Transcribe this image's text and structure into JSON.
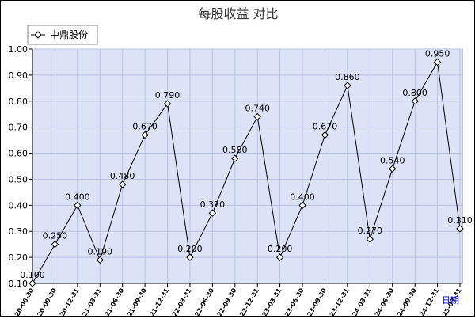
{
  "chart_data": {
    "type": "line",
    "title": "每股收益  对比",
    "xlabel": "日期",
    "ylabel": "",
    "ylim": [
      0.1,
      1.0
    ],
    "yticks": [
      "0.10",
      "0.20",
      "0.30",
      "0.40",
      "0.50",
      "0.60",
      "0.70",
      "0.80",
      "0.90",
      "1.00"
    ],
    "grid": true,
    "legend_position": "top-left",
    "colors": {
      "plot_bg": "#dde3f7",
      "grid": "#b8c2e6",
      "line": "#000000",
      "link": "#0000cc"
    },
    "categories": [
      "2020-06-30",
      "2020-09-30",
      "2020-12-31",
      "2021-03-31",
      "2021-06-30",
      "2021-09-30",
      "2021-12-31",
      "2022-03-31",
      "2022-06-30",
      "2022-09-30",
      "2022-12-31",
      "2023-03-31",
      "2023-06-30",
      "2023-09-30",
      "2023-12-31",
      "2024-03-31",
      "2024-06-30",
      "2024-09-30",
      "2024-12-31",
      "2025-03-31"
    ],
    "series": [
      {
        "name": "中鼎股份",
        "values": [
          0.1,
          0.25,
          0.4,
          0.19,
          0.48,
          0.67,
          0.79,
          0.2,
          0.37,
          0.58,
          0.74,
          0.2,
          0.4,
          0.67,
          0.86,
          0.27,
          0.54,
          0.8,
          0.95,
          0.31
        ],
        "labels": [
          "0.100",
          "0.250",
          "0.400",
          "0.190",
          "0.480",
          "0.670",
          "0.790",
          "0.200",
          "0.370",
          "0.580",
          "0.740",
          "0.200",
          "0.400",
          "0.670",
          "0.860",
          "0.270",
          "0.540",
          "0.800",
          "0.950",
          "0.310"
        ]
      }
    ]
  }
}
